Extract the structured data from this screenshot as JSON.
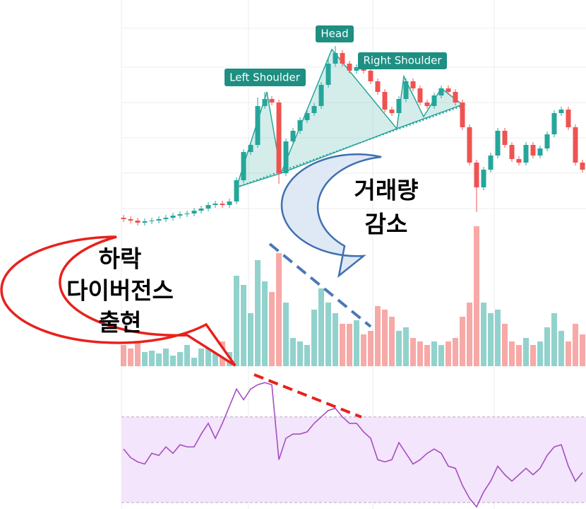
{
  "chart_data": {
    "type": "candlestick",
    "up_color": "#26a69a",
    "down_color": "#ef5350",
    "ylim": [
      70,
      400
    ],
    "open": [
      92,
      90,
      88,
      85,
      87,
      88,
      90,
      92,
      95,
      97,
      98,
      102,
      105,
      110,
      112,
      110,
      115,
      145,
      185,
      195,
      250,
      260,
      255,
      155,
      200,
      215,
      230,
      240,
      250,
      280,
      310,
      325,
      310,
      300,
      305,
      300,
      285,
      270,
      245,
      240,
      260,
      285,
      275,
      255,
      250,
      265,
      275,
      270,
      255,
      220,
      170,
      135,
      160,
      180,
      215,
      195,
      175,
      170,
      195,
      180,
      190,
      210,
      240,
      245,
      220,
      170
    ],
    "high": [
      96,
      94,
      92,
      91,
      92,
      94,
      96,
      99,
      101,
      102,
      106,
      109,
      114,
      116,
      116,
      119,
      149,
      189,
      199,
      262,
      270,
      264,
      259,
      204,
      219,
      234,
      244,
      254,
      284,
      318,
      335,
      329,
      314,
      309,
      309,
      304,
      289,
      274,
      249,
      264,
      289,
      289,
      279,
      259,
      269,
      279,
      279,
      274,
      259,
      224,
      174,
      164,
      184,
      219,
      219,
      199,
      179,
      199,
      199,
      194,
      214,
      244,
      249,
      249,
      224,
      174
    ],
    "low": [
      86,
      84,
      81,
      81,
      83,
      84,
      86,
      88,
      91,
      93,
      94,
      98,
      101,
      106,
      106,
      106,
      111,
      141,
      181,
      191,
      246,
      251,
      140,
      151,
      196,
      211,
      226,
      236,
      246,
      276,
      306,
      306,
      296,
      296,
      296,
      281,
      266,
      241,
      236,
      236,
      256,
      271,
      251,
      246,
      246,
      261,
      266,
      251,
      216,
      166,
      100,
      131,
      156,
      176,
      191,
      171,
      166,
      166,
      176,
      176,
      186,
      206,
      236,
      216,
      166,
      156
    ],
    "close": [
      90,
      88,
      85,
      87,
      88,
      90,
      92,
      95,
      97,
      98,
      102,
      105,
      110,
      112,
      110,
      115,
      145,
      185,
      195,
      250,
      260,
      255,
      155,
      200,
      215,
      230,
      240,
      250,
      280,
      310,
      325,
      310,
      300,
      305,
      300,
      285,
      270,
      245,
      240,
      260,
      285,
      275,
      255,
      250,
      265,
      275,
      270,
      255,
      220,
      170,
      135,
      160,
      180,
      215,
      195,
      175,
      170,
      195,
      180,
      190,
      210,
      240,
      245,
      220,
      170,
      160
    ],
    "volume": {
      "ylim": [
        0,
        200
      ],
      "values": [
        30,
        25,
        35,
        20,
        22,
        18,
        25,
        15,
        20,
        30,
        12,
        25,
        28,
        30,
        35,
        20,
        128,
        115,
        75,
        150,
        120,
        105,
        160,
        90,
        40,
        35,
        30,
        80,
        110,
        90,
        75,
        60,
        60,
        65,
        45,
        50,
        85,
        80,
        70,
        50,
        55,
        40,
        35,
        30,
        35,
        30,
        35,
        40,
        70,
        90,
        198,
        90,
        75,
        80,
        60,
        35,
        30,
        40,
        30,
        35,
        55,
        75,
        50,
        35,
        60,
        45
      ]
    },
    "rsi": {
      "ylim": [
        27,
        93
      ],
      "bands": [
        30,
        70
      ],
      "color": "#a64ec2",
      "band_color": "#f3e5fb",
      "values": [
        55,
        51,
        49,
        48,
        53,
        52,
        56,
        53,
        57,
        56,
        56,
        62,
        67,
        60,
        67,
        75,
        83,
        78,
        83,
        85,
        86,
        85,
        50,
        60,
        62,
        62,
        63,
        67,
        70,
        73,
        74,
        70,
        67,
        67,
        63,
        60,
        50,
        49,
        50,
        58,
        53,
        48,
        50,
        53,
        55,
        53,
        47,
        46,
        38,
        32,
        28,
        35,
        40,
        47,
        43,
        40,
        43,
        46,
        43,
        46,
        52,
        56,
        57,
        47,
        40,
        44
      ]
    },
    "annotations": {
      "left_shoulder": "Left Shoulder",
      "head": "Head",
      "right_shoulder": "Right Shoulder",
      "divergence": [
        "하락",
        "다이버전스",
        "출현"
      ],
      "volume_decline": [
        "거래량",
        "감소"
      ]
    }
  }
}
